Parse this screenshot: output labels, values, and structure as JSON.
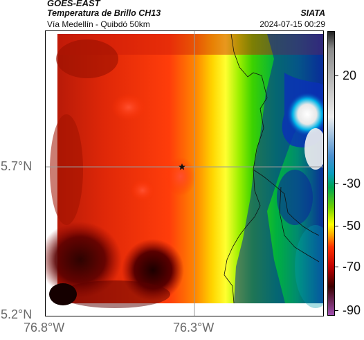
{
  "header": {
    "satellite": "GOES-EAST",
    "product": "Temperatura de Brillo CH13",
    "region": "Vía Medellín - Quibdó 50km",
    "organization": "SIATA",
    "timestamp": "2024-07-15 00:29"
  },
  "axes": {
    "lat_labels": [
      "5.7°N",
      "5.2°N"
    ],
    "lon_labels": [
      "76.8°W",
      "76.3°W"
    ]
  },
  "colorbar": {
    "labels": [
      "20",
      "-30",
      "-50",
      "-70",
      "-90"
    ],
    "colors": [
      "#222222",
      "#8a8a8a",
      "#ececec",
      "#4a8fd0",
      "#0a9dc0",
      "#00a650",
      "#6fd000",
      "#ffff00",
      "#ffa000",
      "#ff3000",
      "#c00000",
      "#3a0000",
      "#a050b0"
    ]
  },
  "map": {
    "marker_icon": "star-icon"
  }
}
